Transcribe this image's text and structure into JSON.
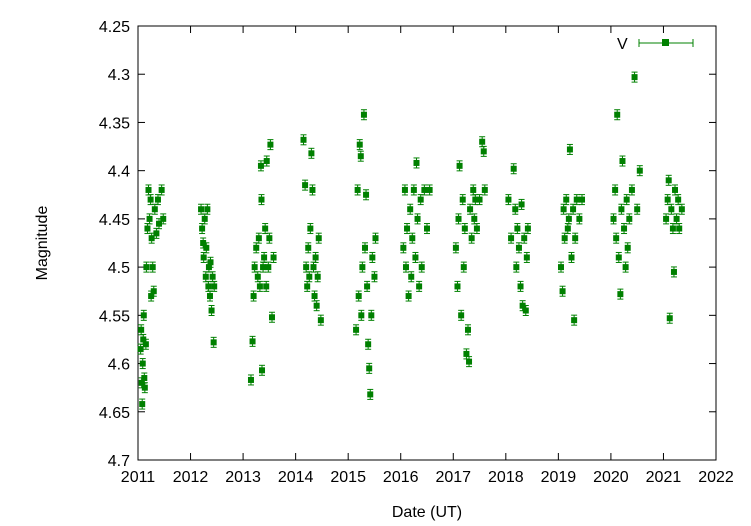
{
  "chart_data": {
    "type": "scatter",
    "title": "",
    "xlabel": "Date (UT)",
    "ylabel": "Magnitude",
    "xlim": [
      2011,
      2022
    ],
    "ylim": [
      4.25,
      4.7
    ],
    "y_inverted": true,
    "x_ticks": [
      "2011",
      "2012",
      "2013",
      "2014",
      "2015",
      "2016",
      "2017",
      "2018",
      "2019",
      "2020",
      "2021",
      "2022"
    ],
    "y_ticks": [
      "4.25",
      "4.3",
      "4.35",
      "4.4",
      "4.45",
      "4.5",
      "4.55",
      "4.6",
      "4.65",
      "4.7"
    ],
    "legend": {
      "position": "top-right",
      "entries": [
        "V"
      ]
    },
    "grid": false,
    "series": [
      {
        "name": "V",
        "color": "#008000",
        "marker": "square",
        "error_bars": true,
        "points": [
          [
            2011.05,
            4.585
          ],
          [
            2011.06,
            4.565
          ],
          [
            2011.07,
            4.62
          ],
          [
            2011.08,
            4.642
          ],
          [
            2011.09,
            4.6
          ],
          [
            2011.1,
            4.575
          ],
          [
            2011.11,
            4.55
          ],
          [
            2011.12,
            4.615
          ],
          [
            2011.13,
            4.625
          ],
          [
            2011.15,
            4.58
          ],
          [
            2011.16,
            4.5
          ],
          [
            2011.18,
            4.46
          ],
          [
            2011.2,
            4.42
          ],
          [
            2011.22,
            4.45
          ],
          [
            2011.24,
            4.43
          ],
          [
            2011.25,
            4.53
          ],
          [
            2011.26,
            4.47
          ],
          [
            2011.28,
            4.5
          ],
          [
            2011.3,
            4.525
          ],
          [
            2011.32,
            4.44
          ],
          [
            2011.35,
            4.465
          ],
          [
            2011.38,
            4.43
          ],
          [
            2011.4,
            4.455
          ],
          [
            2011.45,
            4.42
          ],
          [
            2011.48,
            4.45
          ],
          [
            2012.2,
            4.44
          ],
          [
            2012.22,
            4.46
          ],
          [
            2012.24,
            4.475
          ],
          [
            2012.25,
            4.49
          ],
          [
            2012.27,
            4.45
          ],
          [
            2012.29,
            4.51
          ],
          [
            2012.3,
            4.48
          ],
          [
            2012.32,
            4.44
          ],
          [
            2012.34,
            4.52
          ],
          [
            2012.35,
            4.5
          ],
          [
            2012.37,
            4.53
          ],
          [
            2012.38,
            4.495
          ],
          [
            2012.4,
            4.545
          ],
          [
            2012.42,
            4.51
          ],
          [
            2012.44,
            4.578
          ],
          [
            2012.45,
            4.52
          ],
          [
            2013.15,
            4.617
          ],
          [
            2013.18,
            4.577
          ],
          [
            2013.2,
            4.53
          ],
          [
            2013.22,
            4.5
          ],
          [
            2013.25,
            4.48
          ],
          [
            2013.28,
            4.51
          ],
          [
            2013.3,
            4.47
          ],
          [
            2013.32,
            4.52
          ],
          [
            2013.34,
            4.395
          ],
          [
            2013.35,
            4.43
          ],
          [
            2013.36,
            4.607
          ],
          [
            2013.38,
            4.5
          ],
          [
            2013.4,
            4.49
          ],
          [
            2013.42,
            4.46
          ],
          [
            2013.44,
            4.52
          ],
          [
            2013.45,
            4.39
          ],
          [
            2013.48,
            4.5
          ],
          [
            2013.5,
            4.47
          ],
          [
            2013.52,
            4.373
          ],
          [
            2013.55,
            4.552
          ],
          [
            2013.58,
            4.49
          ],
          [
            2014.15,
            4.368
          ],
          [
            2014.18,
            4.415
          ],
          [
            2014.2,
            4.5
          ],
          [
            2014.22,
            4.52
          ],
          [
            2014.24,
            4.48
          ],
          [
            2014.26,
            4.51
          ],
          [
            2014.28,
            4.46
          ],
          [
            2014.3,
            4.382
          ],
          [
            2014.32,
            4.42
          ],
          [
            2014.34,
            4.5
          ],
          [
            2014.36,
            4.53
          ],
          [
            2014.38,
            4.49
          ],
          [
            2014.4,
            4.54
          ],
          [
            2014.42,
            4.51
          ],
          [
            2014.44,
            4.47
          ],
          [
            2014.48,
            4.555
          ],
          [
            2015.15,
            4.565
          ],
          [
            2015.18,
            4.42
          ],
          [
            2015.2,
            4.53
          ],
          [
            2015.22,
            4.373
          ],
          [
            2015.24,
            4.385
          ],
          [
            2015.25,
            4.55
          ],
          [
            2015.27,
            4.5
          ],
          [
            2015.3,
            4.342
          ],
          [
            2015.32,
            4.48
          ],
          [
            2015.34,
            4.425
          ],
          [
            2015.36,
            4.52
          ],
          [
            2015.38,
            4.58
          ],
          [
            2015.4,
            4.605
          ],
          [
            2015.42,
            4.632
          ],
          [
            2015.44,
            4.55
          ],
          [
            2015.46,
            4.49
          ],
          [
            2015.5,
            4.51
          ],
          [
            2015.52,
            4.47
          ],
          [
            2016.05,
            4.48
          ],
          [
            2016.08,
            4.42
          ],
          [
            2016.1,
            4.5
          ],
          [
            2016.12,
            4.46
          ],
          [
            2016.15,
            4.53
          ],
          [
            2016.18,
            4.44
          ],
          [
            2016.2,
            4.51
          ],
          [
            2016.22,
            4.47
          ],
          [
            2016.25,
            4.42
          ],
          [
            2016.28,
            4.49
          ],
          [
            2016.3,
            4.392
          ],
          [
            2016.32,
            4.45
          ],
          [
            2016.35,
            4.52
          ],
          [
            2016.38,
            4.43
          ],
          [
            2016.4,
            4.5
          ],
          [
            2016.45,
            4.42
          ],
          [
            2016.5,
            4.46
          ],
          [
            2016.55,
            4.42
          ],
          [
            2017.05,
            4.48
          ],
          [
            2017.08,
            4.52
          ],
          [
            2017.1,
            4.45
          ],
          [
            2017.12,
            4.395
          ],
          [
            2017.15,
            4.55
          ],
          [
            2017.18,
            4.43
          ],
          [
            2017.2,
            4.5
          ],
          [
            2017.22,
            4.46
          ],
          [
            2017.25,
            4.59
          ],
          [
            2017.28,
            4.565
          ],
          [
            2017.3,
            4.598
          ],
          [
            2017.32,
            4.44
          ],
          [
            2017.35,
            4.47
          ],
          [
            2017.38,
            4.42
          ],
          [
            2017.4,
            4.45
          ],
          [
            2017.42,
            4.43
          ],
          [
            2017.45,
            4.46
          ],
          [
            2017.5,
            4.43
          ],
          [
            2017.55,
            4.37
          ],
          [
            2017.58,
            4.38
          ],
          [
            2017.6,
            4.42
          ],
          [
            2018.05,
            4.43
          ],
          [
            2018.1,
            4.47
          ],
          [
            2018.15,
            4.398
          ],
          [
            2018.18,
            4.44
          ],
          [
            2018.2,
            4.5
          ],
          [
            2018.22,
            4.46
          ],
          [
            2018.25,
            4.48
          ],
          [
            2018.28,
            4.52
          ],
          [
            2018.3,
            4.435
          ],
          [
            2018.32,
            4.54
          ],
          [
            2018.35,
            4.47
          ],
          [
            2018.38,
            4.545
          ],
          [
            2018.4,
            4.49
          ],
          [
            2018.42,
            4.46
          ],
          [
            2019.05,
            4.5
          ],
          [
            2019.08,
            4.525
          ],
          [
            2019.1,
            4.44
          ],
          [
            2019.12,
            4.47
          ],
          [
            2019.15,
            4.43
          ],
          [
            2019.18,
            4.46
          ],
          [
            2019.2,
            4.45
          ],
          [
            2019.22,
            4.378
          ],
          [
            2019.25,
            4.49
          ],
          [
            2019.28,
            4.44
          ],
          [
            2019.3,
            4.555
          ],
          [
            2019.32,
            4.47
          ],
          [
            2019.35,
            4.43
          ],
          [
            2019.4,
            4.45
          ],
          [
            2019.45,
            4.43
          ],
          [
            2020.05,
            4.45
          ],
          [
            2020.08,
            4.42
          ],
          [
            2020.1,
            4.47
          ],
          [
            2020.12,
            4.342
          ],
          [
            2020.15,
            4.49
          ],
          [
            2020.18,
            4.528
          ],
          [
            2020.2,
            4.44
          ],
          [
            2020.22,
            4.39
          ],
          [
            2020.25,
            4.46
          ],
          [
            2020.28,
            4.5
          ],
          [
            2020.3,
            4.43
          ],
          [
            2020.32,
            4.48
          ],
          [
            2020.35,
            4.45
          ],
          [
            2020.4,
            4.42
          ],
          [
            2020.45,
            4.303
          ],
          [
            2020.5,
            4.44
          ],
          [
            2020.55,
            4.4
          ],
          [
            2021.05,
            4.45
          ],
          [
            2021.08,
            4.43
          ],
          [
            2021.1,
            4.41
          ],
          [
            2021.12,
            4.553
          ],
          [
            2021.15,
            4.44
          ],
          [
            2021.18,
            4.46
          ],
          [
            2021.2,
            4.505
          ],
          [
            2021.22,
            4.42
          ],
          [
            2021.25,
            4.45
          ],
          [
            2021.28,
            4.43
          ],
          [
            2021.3,
            4.46
          ],
          [
            2021.35,
            4.44
          ]
        ]
      }
    ]
  }
}
